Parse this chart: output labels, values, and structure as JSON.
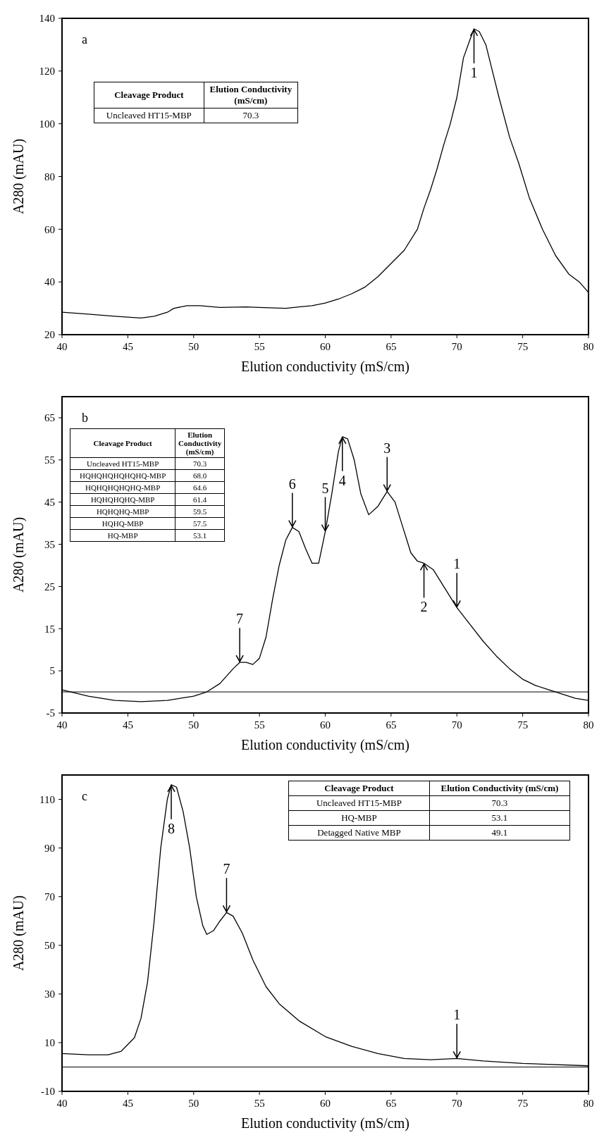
{
  "chart_data": [
    {
      "type": "line",
      "xlabel": "Elution conductivity (mS/cm)",
      "ylabel": "A280 (mAU)",
      "xlim": [
        40,
        80
      ],
      "xticks": [
        40,
        45,
        50,
        55,
        60,
        65,
        70,
        75,
        80
      ],
      "ylim": [
        20,
        140
      ],
      "yticks": [
        20,
        40,
        60,
        80,
        100,
        120,
        140
      ],
      "grid": false,
      "marker": "none",
      "line_style": "solid",
      "series": [
        {
          "color": "#000000",
          "x": [
            40,
            42,
            44,
            46,
            47,
            48,
            48.5,
            49.5,
            50.5,
            52,
            54,
            55,
            57,
            58,
            59,
            60,
            61,
            62,
            63,
            64,
            65,
            66,
            67,
            67.5,
            68,
            68.5,
            69,
            69.5,
            70,
            70.5,
            71,
            71.3,
            71.7,
            72.2,
            72.7,
            73.2,
            74,
            74.7,
            75.5,
            76.5,
            77.5,
            78.5,
            79.3,
            80
          ],
          "values": [
            28.5,
            27.8,
            27,
            26.3,
            27,
            28.5,
            30,
            31,
            31,
            30.3,
            30.5,
            30.3,
            30,
            30.5,
            31,
            32,
            33.5,
            35.5,
            38,
            42,
            47,
            52,
            60,
            68,
            75,
            83,
            92,
            100,
            110,
            125,
            132,
            136,
            135,
            130,
            120,
            110,
            95,
            85,
            72,
            60,
            50,
            43,
            40,
            36
          ]
        }
      ],
      "annotations": [
        "a",
        "Cleavage Product",
        "Elution Conductivity (mS/cm)",
        "Uncleaved HT15-MBP",
        "70.3",
        {
          "text": "1",
          "x": 71.3,
          "y": 136
        }
      ]
    },
    {
      "type": "line",
      "xlabel": "Elution conductivity (mS/cm)",
      "ylabel": "A280 (mAU)",
      "xlim": [
        40,
        80
      ],
      "xticks": [
        40,
        45,
        50,
        55,
        60,
        65,
        70,
        75,
        80
      ],
      "ylim": [
        -5,
        70
      ],
      "yticks": [
        -5,
        5,
        15,
        25,
        35,
        45,
        55,
        65
      ],
      "grid": false,
      "marker": "none",
      "line_style": "solid",
      "ref_lines": [
        {
          "axis": "y",
          "value": 0,
          "color": "#000000"
        }
      ],
      "series": [
        {
          "color": "#000000",
          "x": [
            40,
            42,
            44,
            46,
            48,
            50,
            51,
            52,
            53,
            53.5,
            54,
            54.5,
            55,
            55.5,
            56,
            56.5,
            57,
            57.5,
            58,
            58.5,
            59,
            59.5,
            60,
            60.5,
            61,
            61.3,
            61.7,
            62.2,
            62.7,
            63.3,
            64,
            64.7,
            65.3,
            66,
            66.5,
            67,
            67.5,
            68.2,
            69,
            70,
            71,
            72,
            73,
            74,
            75,
            76,
            77,
            78,
            79,
            80
          ],
          "values": [
            0.5,
            -1,
            -2,
            -2.3,
            -2,
            -1,
            0,
            2,
            5.5,
            7,
            7,
            6.5,
            8,
            13,
            22,
            30,
            36,
            39,
            38,
            34,
            30.5,
            30.5,
            38,
            47,
            57,
            60.5,
            60,
            55,
            47,
            42,
            44,
            47.5,
            45,
            38,
            33,
            31,
            30.5,
            29,
            25,
            20,
            16,
            12,
            8.5,
            5.5,
            3,
            1.5,
            0.5,
            -0.5,
            -1.5,
            -2
          ]
        }
      ],
      "annotations": [
        "b",
        "Cleavage Product",
        "Elution Conductivity (mS/cm)",
        "Uncleaved HT15-MBP",
        "70.3",
        "HQHQHQHQHQHQ-MBP",
        "68.0",
        "HQHQHQHQHQ-MBP",
        "64.6",
        "HQHQHQHQ-MBP",
        "61.4",
        "HQHQHQ-MBP",
        "59.5",
        "HQHQ-MBP",
        "57.5",
        "HQ-MBP",
        "53.1",
        {
          "text": "1",
          "x": 70,
          "y": 20
        },
        {
          "text": "2",
          "x": 67.5,
          "y": 30.5
        },
        {
          "text": "3",
          "x": 64.7,
          "y": 47.5
        },
        {
          "text": "4",
          "x": 61.3,
          "y": 60.5
        },
        {
          "text": "5",
          "x": 60,
          "y": 38
        },
        {
          "text": "6",
          "x": 57.5,
          "y": 39
        },
        {
          "text": "7",
          "x": 53.5,
          "y": 7
        }
      ]
    },
    {
      "type": "line",
      "xlabel": "Elution conductivity (mS/cm)",
      "ylabel": "A280 (mAU)",
      "xlim": [
        40,
        80
      ],
      "xticks": [
        40,
        45,
        50,
        55,
        60,
        65,
        70,
        75,
        80
      ],
      "ylim": [
        -10,
        120
      ],
      "yticks": [
        -10,
        10,
        30,
        50,
        70,
        90,
        110
      ],
      "grid": false,
      "marker": "none",
      "line_style": "solid",
      "ref_lines": [
        {
          "axis": "y",
          "value": 0,
          "color": "#000000"
        }
      ],
      "series": [
        {
          "color": "#000000",
          "x": [
            40,
            42,
            43.5,
            44.5,
            45.5,
            46,
            46.5,
            47,
            47.5,
            48,
            48.3,
            48.7,
            49.2,
            49.7,
            50.2,
            50.7,
            51,
            51.5,
            52,
            52.5,
            53,
            53.7,
            54.5,
            55.5,
            56.5,
            58,
            60,
            62,
            64,
            66,
            68,
            70,
            72,
            75,
            80
          ],
          "values": [
            5.5,
            5,
            5,
            6.5,
            12,
            20,
            35,
            60,
            90,
            110,
            116,
            115,
            105,
            90,
            70,
            58,
            54.5,
            56,
            60,
            63.5,
            62,
            55,
            44,
            33,
            26,
            19,
            12.5,
            8.5,
            5.5,
            3.5,
            3,
            3.5,
            2.5,
            1.5,
            0.5
          ]
        }
      ],
      "annotations": [
        "c",
        "Cleavage Product",
        "Elution Conductivity (mS/cm)",
        "Uncleaved HT15-MBP",
        "70.3",
        "HQ-MBP",
        "53.1",
        "Detagged Native MBP",
        "49.1",
        {
          "text": "1",
          "x": 70,
          "y": 3.5
        },
        {
          "text": "7",
          "x": 52.5,
          "y": 63.5
        },
        {
          "text": "8",
          "x": 48.3,
          "y": 116
        }
      ]
    }
  ]
}
